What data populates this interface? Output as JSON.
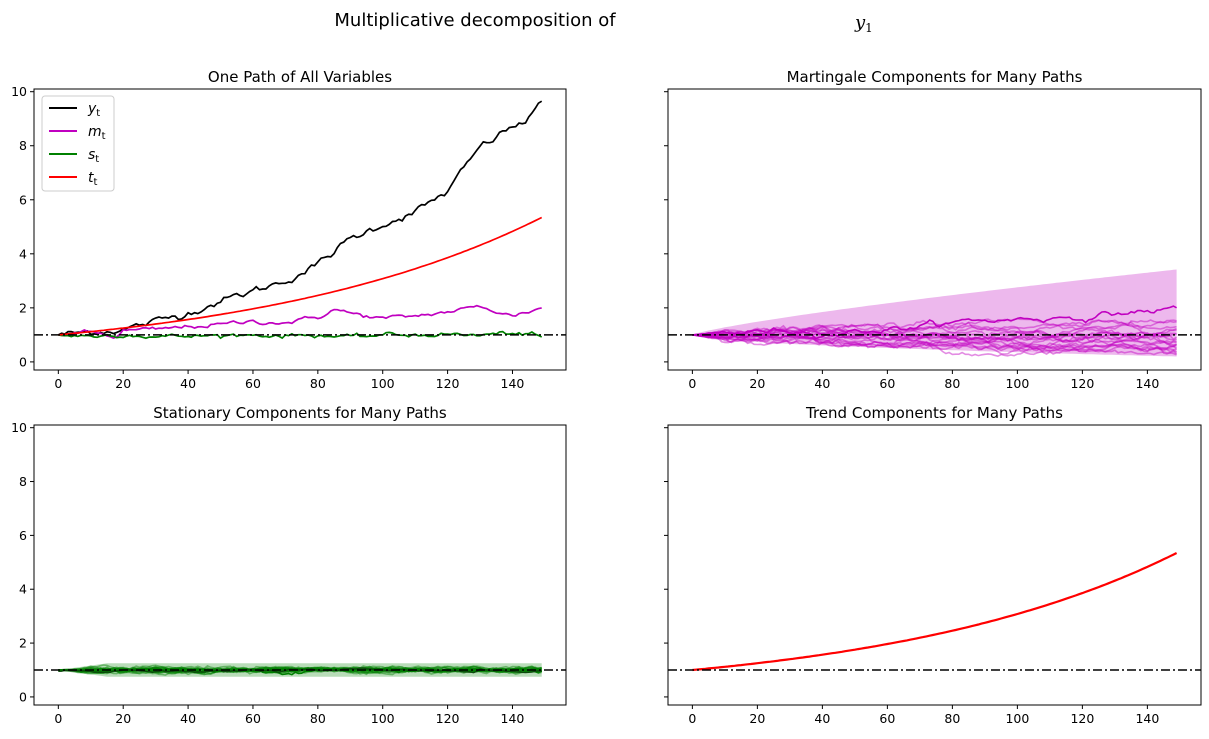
{
  "figure": {
    "suptitle_left": "Multiplicative decomposition of",
    "suptitle_right_var": "y",
    "suptitle_right_sub": "1"
  },
  "chart_data": [
    {
      "type": "line",
      "title": "One Path of All Variables",
      "x_range": [
        0,
        149
      ],
      "xlim": [
        -7.5,
        156.5
      ],
      "ylim": [
        -0.3,
        10.1
      ],
      "xticks": [
        0,
        20,
        40,
        60,
        80,
        100,
        120,
        140
      ],
      "yticks": [
        0,
        2,
        4,
        6,
        8,
        10
      ],
      "reference_line": {
        "y": 1,
        "style": "dashdot",
        "color": "#000000"
      },
      "legend": {
        "position": "upper-left",
        "entries": [
          {
            "label": "y",
            "sub": "t",
            "color": "#000000"
          },
          {
            "label": "m",
            "sub": "t",
            "color": "#c000c0"
          },
          {
            "label": "s",
            "sub": "t",
            "color": "#008000"
          },
          {
            "label": "t",
            "sub": "t",
            "color": "#ff0000"
          }
        ]
      },
      "series": [
        {
          "name": "y_t",
          "color": "#000000",
          "x": [
            0,
            10,
            20,
            30,
            40,
            50,
            60,
            70,
            80,
            90,
            100,
            110,
            120,
            130,
            140,
            145,
            149
          ],
          "values": [
            1.0,
            1.12,
            1.2,
            1.5,
            1.82,
            2.25,
            2.62,
            3.0,
            3.6,
            4.55,
            5.1,
            5.55,
            6.3,
            7.95,
            8.7,
            8.95,
            9.65
          ]
        },
        {
          "name": "m_t",
          "color": "#c000c0",
          "x": [
            0,
            10,
            18,
            20,
            30,
            40,
            50,
            60,
            70,
            80,
            85,
            90,
            100,
            110,
            120,
            130,
            140,
            149
          ],
          "values": [
            1.0,
            1.1,
            0.92,
            1.15,
            1.2,
            1.3,
            1.38,
            1.5,
            1.45,
            1.65,
            1.95,
            1.8,
            1.6,
            1.7,
            1.85,
            2.05,
            1.7,
            2.0
          ]
        },
        {
          "name": "s_t",
          "color": "#008000",
          "x": [
            0,
            10,
            20,
            30,
            40,
            50,
            60,
            70,
            80,
            90,
            100,
            110,
            120,
            130,
            140,
            149
          ],
          "values": [
            1.0,
            0.95,
            1.02,
            0.93,
            0.95,
            0.98,
            1.0,
            0.97,
            1.0,
            0.9,
            1.0,
            1.0,
            1.02,
            0.98,
            1.08,
            0.92
          ]
        },
        {
          "name": "t_t",
          "color": "#ff0000",
          "formula": "exp(0.01125*x)",
          "x": [
            0,
            20,
            40,
            60,
            80,
            100,
            120,
            149
          ],
          "values": [
            1.0,
            1.25,
            1.57,
            1.96,
            2.46,
            3.08,
            3.86,
            5.33
          ]
        }
      ]
    },
    {
      "type": "line",
      "title": "Martingale Components for Many Paths",
      "xlim": [
        -7.5,
        156.5
      ],
      "ylim": [
        -0.3,
        10.1
      ],
      "xticks": [
        0,
        20,
        40,
        60,
        80,
        100,
        120,
        140
      ],
      "yticks": [
        0,
        2,
        4,
        6,
        8,
        10
      ],
      "reference_line": {
        "y": 1,
        "style": "dashdot",
        "color": "#000000"
      },
      "band": {
        "color": "#c000c0",
        "x": [
          0,
          149
        ],
        "upper_end": 3.42,
        "lower_end": 0.2
      },
      "paths": {
        "count": 20,
        "color": "#c000c0",
        "final_values": [
          2.0,
          1.5,
          1.3,
          0.5,
          0.8,
          0.6,
          1.2,
          0.7,
          0.4,
          0.9,
          1.1,
          0.55,
          0.35,
          0.75,
          0.65,
          1.7,
          0.45,
          0.85,
          1.05,
          0.3
        ]
      }
    },
    {
      "type": "line",
      "title": "Stationary Components for Many Paths",
      "xlim": [
        -7.5,
        156.5
      ],
      "ylim": [
        -0.3,
        10.1
      ],
      "xticks": [
        0,
        20,
        40,
        60,
        80,
        100,
        120,
        140
      ],
      "yticks": [
        0,
        2,
        4,
        6,
        8,
        10
      ],
      "reference_line": {
        "y": 1,
        "style": "dashdot",
        "color": "#000000"
      },
      "band": {
        "color": "#008000",
        "upper": 1.25,
        "lower": 0.75
      },
      "paths": {
        "count": 20,
        "color": "#008000",
        "mean": 1.0,
        "spread": 0.15
      }
    },
    {
      "type": "line",
      "title": "Trend Components for Many Paths",
      "xlim": [
        -7.5,
        156.5
      ],
      "ylim": [
        -0.3,
        10.1
      ],
      "xticks": [
        0,
        20,
        40,
        60,
        80,
        100,
        120,
        140
      ],
      "yticks": [
        0,
        2,
        4,
        6,
        8,
        10
      ],
      "reference_line": {
        "y": 1,
        "style": "dashdot",
        "color": "#000000"
      },
      "series": [
        {
          "name": "trend",
          "color": "#ff0000",
          "formula": "exp(0.01125*x)",
          "x": [
            0,
            20,
            40,
            60,
            80,
            100,
            120,
            149
          ],
          "values": [
            1.0,
            1.25,
            1.57,
            1.96,
            2.46,
            3.08,
            3.86,
            5.33
          ]
        }
      ]
    }
  ]
}
